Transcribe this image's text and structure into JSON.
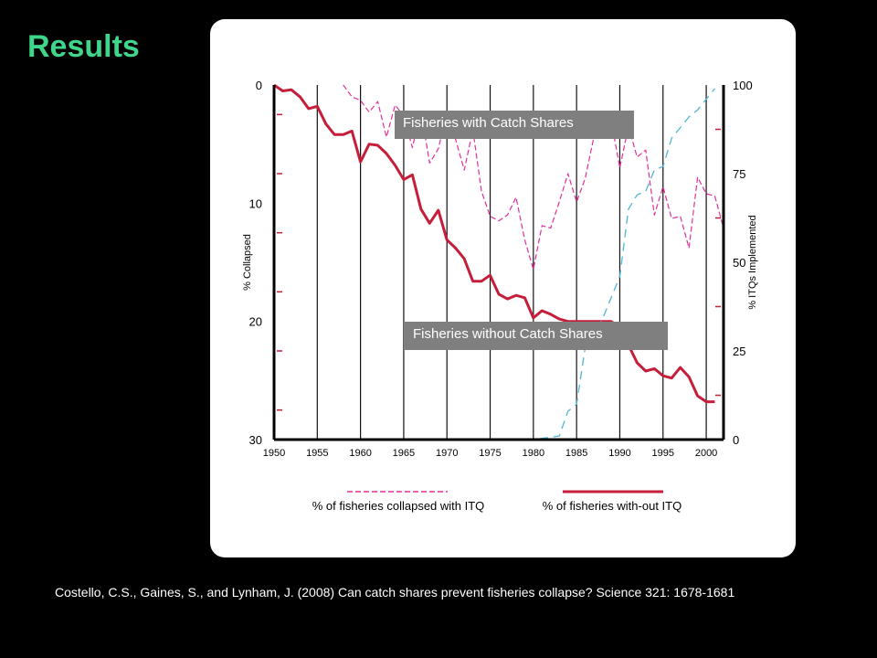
{
  "slide": {
    "title": "Results",
    "citation": "Costello, C.S., Gaines, S., and Lynham, J. (2008) Can catch shares prevent fisheries collapse? Science 321: 1678-1681"
  },
  "callouts": {
    "with": "Fisheries with Catch Shares",
    "without": "Fisheries without Catch Shares"
  },
  "colors": {
    "background": "#000000",
    "title": "#3fd58b",
    "panel": "#ffffff",
    "collapsed_with_itq": "#e0309a",
    "without_itq": "#c41e3a",
    "itqs_implemented": "#4fb6d6",
    "callout_box": "#7f7f7f"
  },
  "chart_data": {
    "type": "line",
    "x_ticks": [
      "1950",
      "1955",
      "1960",
      "1965",
      "1970",
      "1975",
      "1980",
      "1985",
      "1990",
      "1995",
      "2000"
    ],
    "ylabel_left": "% Collapsed",
    "ylabel_right": "% ITQs Implemented",
    "y_left_ticks": [
      "0",
      "10",
      "20",
      "30"
    ],
    "y_right_ticks": [
      "100",
      "75",
      "50",
      "25",
      "0"
    ],
    "ylim_left": [
      30,
      0
    ],
    "ylim_right": [
      0,
      100
    ],
    "xlim": [
      1950,
      2002
    ],
    "legend_position": "bottom",
    "grid": "vertical",
    "series": [
      {
        "name": "% of fisheries collapsed with ITQ",
        "style": "dashed",
        "axis": "left",
        "points": [
          [
            1958,
            0.0
          ],
          [
            1959,
            1.0
          ],
          [
            1960,
            1.3
          ],
          [
            1961,
            2.3
          ],
          [
            1962,
            1.4
          ],
          [
            1963,
            4.4
          ],
          [
            1964,
            1.7
          ],
          [
            1965,
            2.6
          ],
          [
            1966,
            5.3
          ],
          [
            1967,
            2.2
          ],
          [
            1968,
            6.6
          ],
          [
            1969,
            5.4
          ],
          [
            1970,
            2.4
          ],
          [
            1971,
            4.6
          ],
          [
            1972,
            7.2
          ],
          [
            1973,
            3.8
          ],
          [
            1974,
            9.0
          ],
          [
            1975,
            11.1
          ],
          [
            1976,
            11.5
          ],
          [
            1977,
            11.0
          ],
          [
            1978,
            9.5
          ],
          [
            1979,
            13.1
          ],
          [
            1980,
            15.6
          ],
          [
            1981,
            11.9
          ],
          [
            1982,
            12.1
          ],
          [
            1983,
            9.9
          ],
          [
            1984,
            7.5
          ],
          [
            1985,
            9.9
          ],
          [
            1986,
            7.9
          ],
          [
            1987,
            4.4
          ],
          [
            1988,
            4.1
          ],
          [
            1989,
            3.0
          ],
          [
            1990,
            7.0
          ],
          [
            1991,
            3.5
          ],
          [
            1992,
            6.1
          ],
          [
            1993,
            5.5
          ],
          [
            1994,
            11.0
          ],
          [
            1995,
            8.6
          ],
          [
            1996,
            11.3
          ],
          [
            1997,
            11.1
          ],
          [
            1998,
            13.8
          ],
          [
            1999,
            7.8
          ],
          [
            2000,
            9.2
          ],
          [
            2001,
            9.4
          ],
          [
            2002,
            12.1
          ]
        ]
      },
      {
        "name": "% of fisheries with-out ITQ",
        "style": "solid",
        "axis": "left",
        "points": [
          [
            1950,
            0.0
          ],
          [
            1951,
            0.5
          ],
          [
            1952,
            0.4
          ],
          [
            1953,
            1.0
          ],
          [
            1954,
            2.0
          ],
          [
            1955,
            1.8
          ],
          [
            1956,
            3.3
          ],
          [
            1957,
            4.2
          ],
          [
            1958,
            4.2
          ],
          [
            1959,
            3.9
          ],
          [
            1960,
            6.5
          ],
          [
            1961,
            5.0
          ],
          [
            1962,
            5.1
          ],
          [
            1963,
            5.8
          ],
          [
            1964,
            6.8
          ],
          [
            1965,
            8.0
          ],
          [
            1966,
            7.6
          ],
          [
            1967,
            10.5
          ],
          [
            1968,
            11.7
          ],
          [
            1969,
            10.6
          ],
          [
            1970,
            13.1
          ],
          [
            1971,
            13.8
          ],
          [
            1972,
            14.7
          ],
          [
            1973,
            16.6
          ],
          [
            1974,
            16.6
          ],
          [
            1975,
            16.1
          ],
          [
            1976,
            17.7
          ],
          [
            1977,
            18.1
          ],
          [
            1978,
            17.8
          ],
          [
            1979,
            18.0
          ],
          [
            1980,
            19.7
          ],
          [
            1981,
            19.1
          ],
          [
            1982,
            19.4
          ],
          [
            1983,
            19.8
          ],
          [
            1984,
            20.0
          ],
          [
            1985,
            20.0
          ],
          [
            1986,
            20.0
          ],
          [
            1987,
            20.0
          ],
          [
            1988,
            20.0
          ],
          [
            1989,
            20.0
          ],
          [
            1990,
            20.5
          ],
          [
            1991,
            22.0
          ],
          [
            1992,
            23.5
          ],
          [
            1993,
            24.2
          ],
          [
            1994,
            24.0
          ],
          [
            1995,
            24.6
          ],
          [
            1996,
            24.8
          ],
          [
            1997,
            23.9
          ],
          [
            1998,
            24.7
          ],
          [
            1999,
            26.3
          ],
          [
            2000,
            26.8
          ],
          [
            2001,
            26.8
          ]
        ]
      },
      {
        "name": "% ITQs Implemented",
        "style": "dashed",
        "axis": "right",
        "points": [
          [
            1976,
            0
          ],
          [
            1980,
            0
          ],
          [
            1983,
            1
          ],
          [
            1984,
            8
          ],
          [
            1985,
            10
          ],
          [
            1986,
            26
          ],
          [
            1987,
            30
          ],
          [
            1988,
            34
          ],
          [
            1989,
            40
          ],
          [
            1990,
            46
          ],
          [
            1991,
            65
          ],
          [
            1992,
            69
          ],
          [
            1993,
            70
          ],
          [
            1994,
            76
          ],
          [
            1995,
            77
          ],
          [
            1996,
            85
          ],
          [
            1997,
            88
          ],
          [
            1998,
            91
          ],
          [
            1999,
            93
          ],
          [
            2000,
            96
          ],
          [
            2001,
            99
          ]
        ]
      }
    ]
  }
}
